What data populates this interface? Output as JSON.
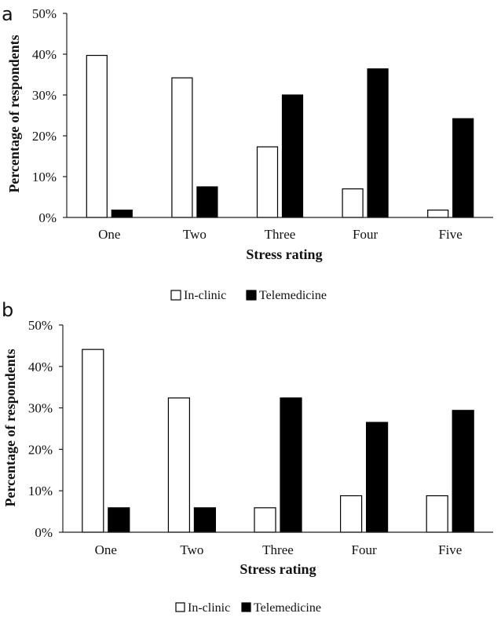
{
  "chart_data": [
    {
      "panel": "a",
      "type": "bar",
      "title": "",
      "xlabel": "Stress rating",
      "ylabel": "Percentage of respondents",
      "categories": [
        "One",
        "Two",
        "Three",
        "Four",
        "Five"
      ],
      "series": [
        {
          "name": "In-clinic",
          "color": "#ffffff",
          "values": [
            39.7,
            34.2,
            17.3,
            7.0,
            1.8
          ]
        },
        {
          "name": "Telemedicine",
          "color": "#000000",
          "values": [
            1.8,
            7.5,
            30.0,
            36.4,
            24.2
          ]
        }
      ],
      "ylim": [
        0,
        50
      ],
      "yticks": [
        "0%",
        "10%",
        "20%",
        "30%",
        "40%",
        "50%"
      ],
      "grid": false,
      "legend": "bottom-center"
    },
    {
      "panel": "b",
      "type": "bar",
      "title": "",
      "xlabel": "Stress rating",
      "ylabel": "Percentage of respondents",
      "categories": [
        "One",
        "Two",
        "Three",
        "Four",
        "Five"
      ],
      "series": [
        {
          "name": "In-clinic",
          "color": "#ffffff",
          "values": [
            44.1,
            32.4,
            5.9,
            8.8,
            8.8
          ]
        },
        {
          "name": "Telemedicine",
          "color": "#000000",
          "values": [
            5.9,
            5.9,
            32.4,
            26.5,
            29.4
          ]
        }
      ],
      "ylim": [
        0,
        50
      ],
      "yticks": [
        "0%",
        "10%",
        "20%",
        "30%",
        "40%",
        "50%"
      ],
      "grid": false,
      "legend": "bottom-center"
    }
  ]
}
